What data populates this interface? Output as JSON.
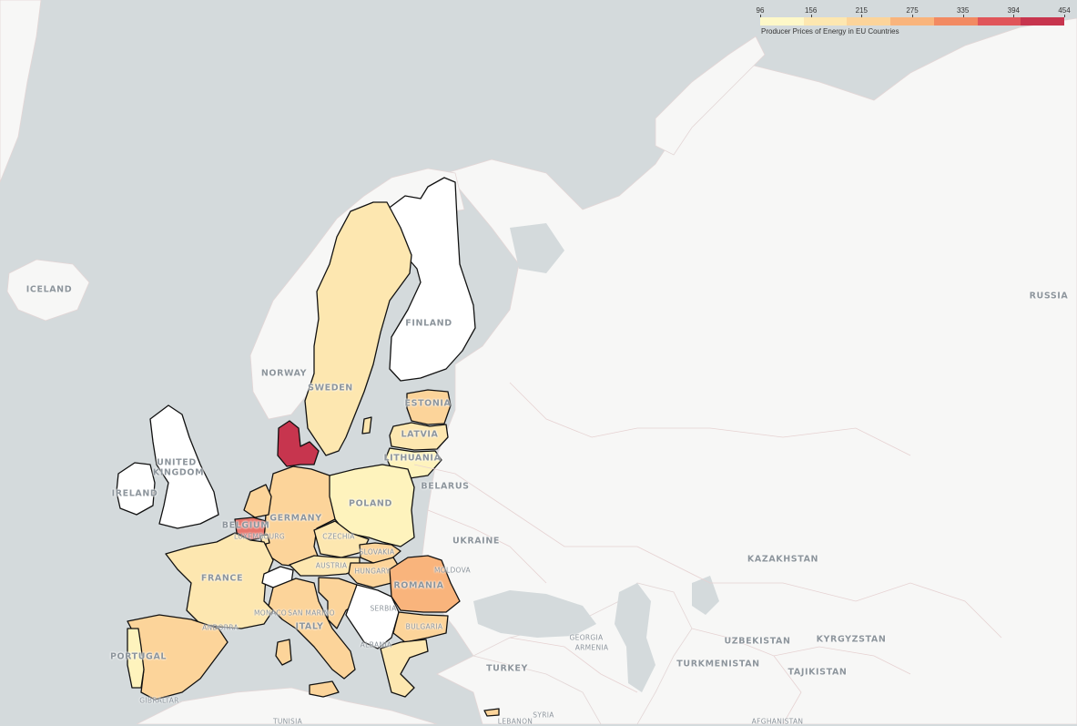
{
  "legend": {
    "title": "Producer Prices of Energy in EU Countries",
    "ticks": [
      "96",
      "156",
      "215",
      "275",
      "335",
      "394",
      "454"
    ],
    "scale_colors": [
      "#fef8c8",
      "#fde7b0",
      "#fcd49a",
      "#f9b47c",
      "#f28a62",
      "#e0555a",
      "#c7354e"
    ]
  },
  "map_labels": {
    "iceland": "ICELAND",
    "norway": "NORWAY",
    "sweden": "SWEDEN",
    "finland": "FINLAND",
    "russia": "RUSSIA",
    "estonia": "ESTONIA",
    "latvia": "LATVIA",
    "lithuania": "LITHUANIA",
    "united": "UNITED",
    "kingdom": "KINGDOM",
    "ireland": "IRELAND",
    "belarus": "BELARUS",
    "poland": "POLAND",
    "germany": "GERMANY",
    "belgium": "BELGIUM",
    "luxembourg": "LUXEMBOURG",
    "czechia": "CZECHIA",
    "slovakia": "SLOVAKIA",
    "ukraine": "UKRAINE",
    "moldova": "MOLDOVA",
    "austria": "AUSTRIA",
    "hungary": "HUNGARY",
    "romania": "ROMANIA",
    "france": "FRANCE",
    "kazakhstan": "KAZAKHSTAN",
    "serbia": "SERBIA",
    "monaco": "MONACO",
    "san_marino": "SAN MARINO",
    "italy": "ITALY",
    "andorra": "ANDORRA",
    "bulgaria": "BULGARIA",
    "albania": "ALBANIA",
    "portugal": "PORTUGAL",
    "georgia": "GEORGIA",
    "armenia": "ARMENIA",
    "turkey": "TURKEY",
    "uzbekistan": "UZBEKISTAN",
    "kyrgyzstan": "KYRGYZSTAN",
    "turkmenistan": "TURKMENISTAN",
    "tajikistan": "TAJIKISTAN",
    "gibraltar": "GIBRALTAR",
    "syria": "SYRIA",
    "tunisia": "TUNISIA",
    "lebanon": "LEBANON",
    "afghanistan": "AFGHANISTAN"
  },
  "colors": {
    "sea": "#d4dadc",
    "land": "#f7f7f6",
    "border": "#111111",
    "no_data": "#ffffff"
  }
}
